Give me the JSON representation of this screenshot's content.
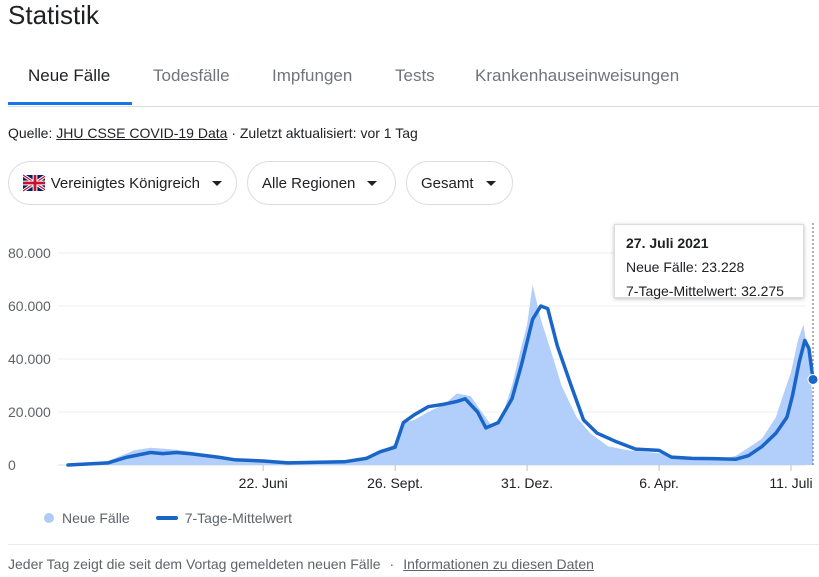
{
  "page": {
    "title": "Statistik"
  },
  "tabs": [
    {
      "label": "Neue Fälle",
      "active": true
    },
    {
      "label": "Todesfälle",
      "active": false
    },
    {
      "label": "Impfungen",
      "active": false
    },
    {
      "label": "Tests",
      "active": false
    },
    {
      "label": "Krankenhauseinweisungen",
      "active": false
    }
  ],
  "source": {
    "prefix": "Quelle:",
    "link": "JHU CSSE COVID-19 Data",
    "updated": "· Zuletzt aktualisiert: vor 1 Tag"
  },
  "filters": {
    "country": "Vereinigtes Königreich",
    "region": "Alle Regionen",
    "scope": "Gesamt"
  },
  "tooltip": {
    "date": "27. Juli 2021",
    "new_cases": "Neue Fälle: 23.228",
    "avg": "7-Tage-Mittelwert: 32.275"
  },
  "legend": {
    "bars": "Neue Fälle",
    "line": "7-Tage-Mittelwert"
  },
  "footer": {
    "text": "Jeder Tag zeigt die seit dem Vortag gemeldeten neuen Fälle",
    "sep": "·",
    "link": "Informationen zu diesen Daten"
  },
  "colors": {
    "accent": "#1a73e8",
    "line": "#1a66c8",
    "bars": "#aecbfa"
  },
  "chart_data": {
    "type": "area",
    "y_ticks": [
      "80.000",
      "60.000",
      "40.000",
      "20.000",
      "0"
    ],
    "ylim": [
      0,
      80000
    ],
    "x_ticks": [
      "22. Juni",
      "26. Sept.",
      "31. Dez.",
      "6. Apr.",
      "11. Juli"
    ],
    "grid": true,
    "legend_position": "bottom-left",
    "series": [
      {
        "name": "Neue Fälle",
        "type": "bar",
        "x": [
          "2020-02-01",
          "2020-03-01",
          "2020-03-20",
          "2020-04-01",
          "2020-04-15",
          "2020-05-01",
          "2020-05-15",
          "2020-06-01",
          "2020-06-22",
          "2020-07-15",
          "2020-08-01",
          "2020-08-20",
          "2020-09-05",
          "2020-09-15",
          "2020-09-26",
          "2020-10-02",
          "2020-10-10",
          "2020-10-20",
          "2020-11-01",
          "2020-11-10",
          "2020-11-20",
          "2020-11-28",
          "2020-12-05",
          "2020-12-12",
          "2020-12-20",
          "2020-12-27",
          "2020-12-31",
          "2021-01-04",
          "2021-01-10",
          "2021-01-18",
          "2021-01-25",
          "2021-02-05",
          "2021-02-15",
          "2021-02-28",
          "2021-03-15",
          "2021-04-06",
          "2021-04-20",
          "2021-05-05",
          "2021-05-20",
          "2021-06-01",
          "2021-06-10",
          "2021-06-20",
          "2021-06-30",
          "2021-07-05",
          "2021-07-11",
          "2021-07-16",
          "2021-07-20",
          "2021-07-24",
          "2021-07-27"
        ],
        "values": [
          0,
          1500,
          5500,
          6500,
          6000,
          5000,
          3500,
          2000,
          1500,
          800,
          1000,
          1200,
          2500,
          5000,
          8000,
          16000,
          17000,
          20000,
          23000,
          27000,
          26000,
          20000,
          15000,
          17000,
          30000,
          45000,
          53000,
          68000,
          55000,
          42000,
          30000,
          18000,
          12000,
          7000,
          5500,
          4500,
          2500,
          2500,
          2000,
          3500,
          6500,
          10000,
          18000,
          26000,
          35000,
          47000,
          53000,
          40000,
          23228
        ]
      },
      {
        "name": "7-Tage-Mittelwert",
        "type": "line",
        "x": [
          "2020-02-01",
          "2020-03-01",
          "2020-03-15",
          "2020-04-01",
          "2020-04-10",
          "2020-04-20",
          "2020-05-01",
          "2020-05-20",
          "2020-06-01",
          "2020-06-22",
          "2020-07-10",
          "2020-08-01",
          "2020-08-20",
          "2020-09-05",
          "2020-09-15",
          "2020-09-26",
          "2020-10-02",
          "2020-10-10",
          "2020-10-20",
          "2020-11-01",
          "2020-11-10",
          "2020-11-16",
          "2020-11-25",
          "2020-12-01",
          "2020-12-10",
          "2020-12-20",
          "2020-12-27",
          "2021-01-04",
          "2021-01-10",
          "2021-01-15",
          "2021-01-22",
          "2021-02-01",
          "2021-02-10",
          "2021-02-20",
          "2021-03-05",
          "2021-03-20",
          "2021-04-06",
          "2021-04-15",
          "2021-04-30",
          "2021-05-15",
          "2021-06-01",
          "2021-06-10",
          "2021-06-20",
          "2021-06-30",
          "2021-07-08",
          "2021-07-12",
          "2021-07-17",
          "2021-07-21",
          "2021-07-24",
          "2021-07-27"
        ],
        "values": [
          0,
          800,
          3000,
          4700,
          4300,
          4700,
          4200,
          3000,
          2000,
          1500,
          800,
          1000,
          1200,
          2500,
          5000,
          6700,
          16000,
          19000,
          22000,
          23000,
          24000,
          25000,
          20000,
          14000,
          16000,
          25000,
          38000,
          55000,
          60000,
          59000,
          45000,
          30000,
          17000,
          12000,
          9000,
          6000,
          5500,
          3000,
          2500,
          2400,
          2200,
          3500,
          7000,
          12000,
          18000,
          26000,
          39000,
          47000,
          44000,
          32275
        ]
      }
    ]
  }
}
